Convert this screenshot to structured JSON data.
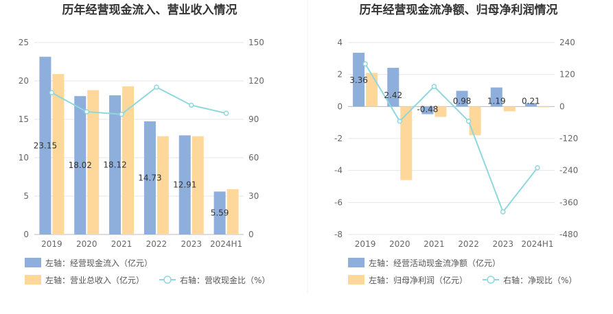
{
  "chart_data": [
    {
      "type": "bar",
      "title": "历年经营现金流入、营业收入情况",
      "categories": [
        "2019",
        "2020",
        "2021",
        "2022",
        "2023",
        "2024H1"
      ],
      "ylim": [
        0,
        25
      ],
      "y_ticks": [
        "0",
        "5",
        "10",
        "15",
        "20",
        "25"
      ],
      "y2lim": [
        0,
        150
      ],
      "y2_ticks": [
        "0",
        "30",
        "60",
        "90",
        "120",
        "150"
      ],
      "grid": true,
      "legend_position": "bottom",
      "series": [
        {
          "name": "左轴：经营现金流入（亿元）",
          "kind": "bar",
          "axis": "left",
          "color": "#8eaedc",
          "values": [
            23.15,
            18.02,
            18.12,
            14.73,
            12.91,
            5.59
          ],
          "labels": [
            "23.15",
            "18.02",
            "18.12",
            "14.73",
            "12.91",
            "5.59"
          ]
        },
        {
          "name": "左轴：营业总收入（亿元）",
          "kind": "bar",
          "axis": "left",
          "color": "#fdd89a",
          "values": [
            20.9,
            18.8,
            19.3,
            12.8,
            12.8,
            5.9
          ]
        },
        {
          "name": "右轴：营收现金比（%）",
          "kind": "line",
          "axis": "right",
          "color": "#8dd8de",
          "values": [
            110.8,
            95.9,
            93.9,
            115.1,
            101.0,
            94.7
          ]
        }
      ]
    },
    {
      "type": "bar",
      "title": "历年经营现金流净额、归母净利润情况",
      "categories": [
        "2019",
        "2020",
        "2021",
        "2022",
        "2023",
        "2024H1"
      ],
      "ylim": [
        -8,
        4
      ],
      "y_ticks": [
        "-8",
        "-6",
        "-4",
        "-2",
        "0",
        "2",
        "4"
      ],
      "y2lim": [
        -480,
        240
      ],
      "y2_ticks": [
        "-480",
        "-360",
        "-240",
        "-120",
        "0",
        "120",
        "240"
      ],
      "grid": true,
      "legend_position": "bottom",
      "series": [
        {
          "name": "左轴：经营活动现金流净额（亿元）",
          "kind": "bar",
          "axis": "left",
          "color": "#8eaedc",
          "values": [
            3.36,
            2.42,
            -0.48,
            0.98,
            1.19,
            0.21
          ],
          "labels": [
            "3.36",
            "2.42",
            "-0.48",
            "0.98",
            "1.19",
            "0.21"
          ]
        },
        {
          "name": "左轴：归母净利润（亿元）",
          "kind": "bar",
          "axis": "left",
          "color": "#fdd89a",
          "values": [
            2.1,
            -4.6,
            -0.65,
            -1.8,
            -0.3,
            -0.05
          ]
        },
        {
          "name": "右轴：净现比（%）",
          "kind": "line",
          "axis": "right",
          "color": "#8dd8de",
          "values": [
            160,
            -55,
            75,
            -55,
            -395,
            -230
          ]
        }
      ]
    }
  ]
}
